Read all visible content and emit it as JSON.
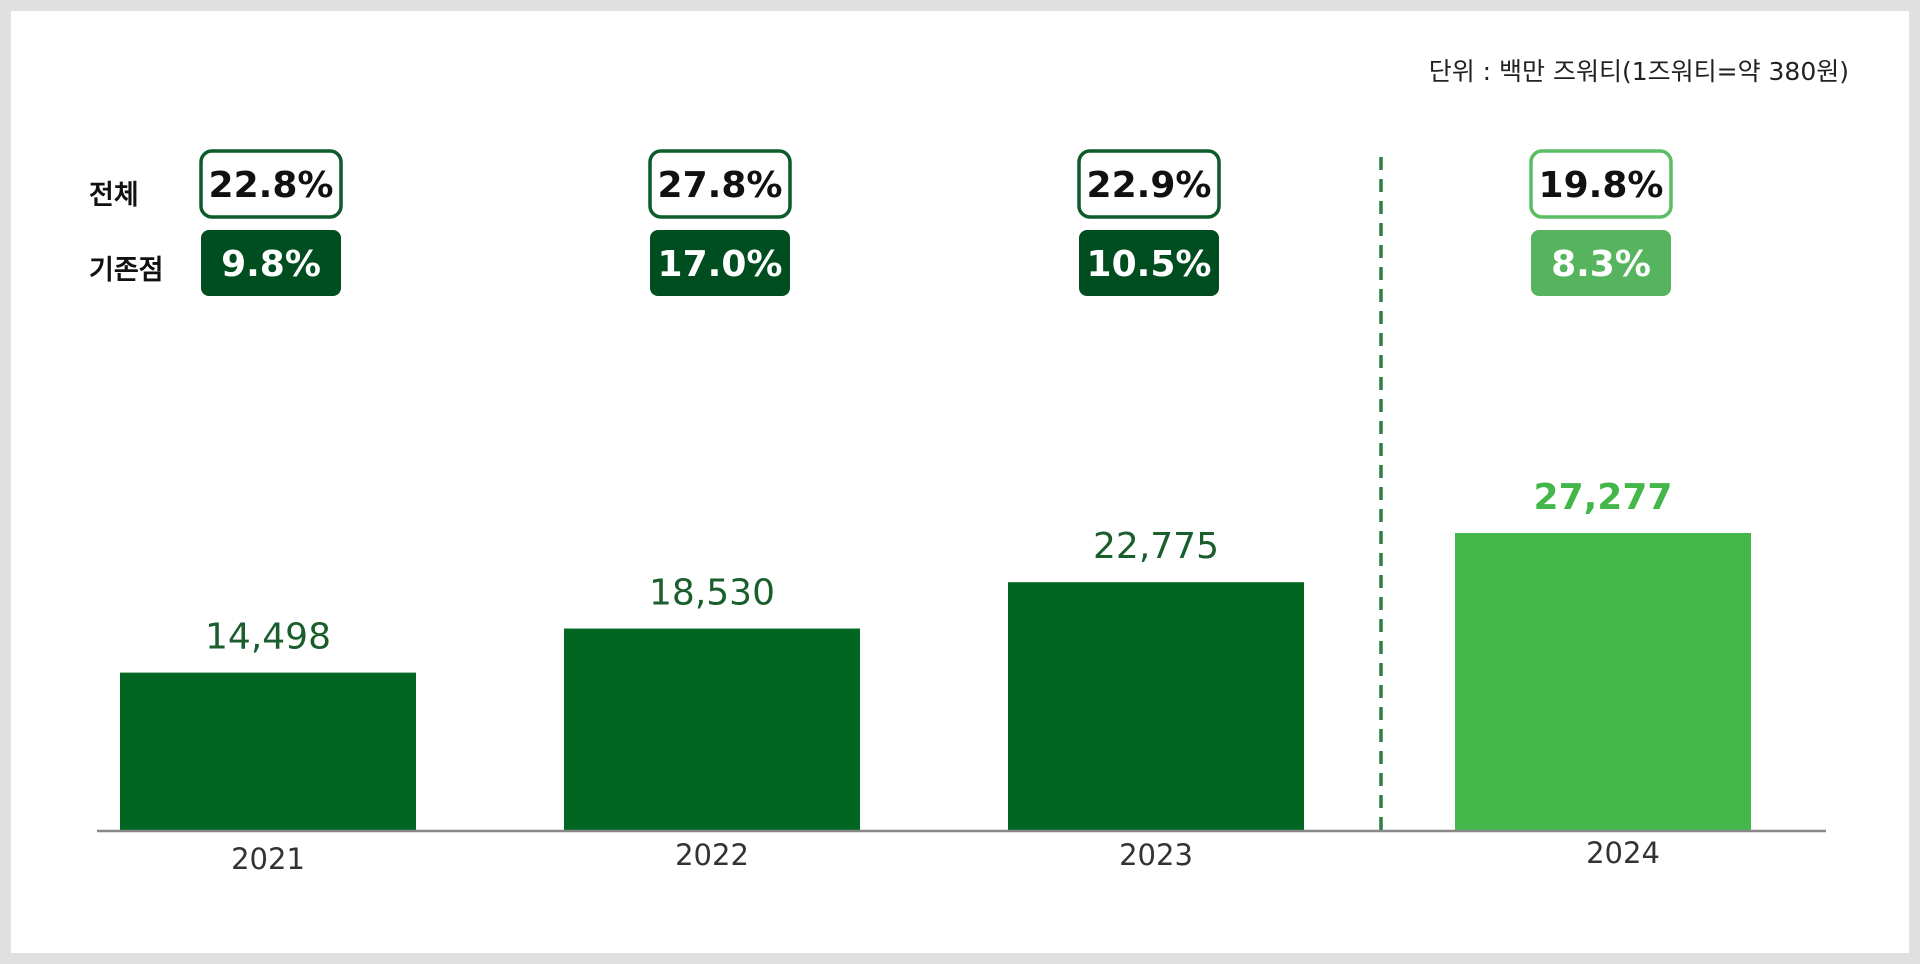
{
  "chart_data": {
    "type": "bar",
    "unit_note": "단위 : 백만 즈워티(1즈워티=약 380원)",
    "categories": [
      "2021",
      "2022",
      "2023",
      "2024"
    ],
    "values": [
      14498,
      18530,
      22775,
      27277
    ],
    "value_labels": [
      "14,498",
      "18,530",
      "22,775",
      "27,277"
    ],
    "highlight_category": "2024",
    "row_labels": {
      "total": "전체",
      "existing": "기존점"
    },
    "growth_total": [
      "22.8%",
      "27.8%",
      "22.9%",
      "19.8%"
    ],
    "growth_existing": [
      "9.8%",
      "17.0%",
      "10.5%",
      "8.3%"
    ],
    "ylim": [
      0,
      38000
    ],
    "grid": false,
    "colors": {
      "bar": "#006622",
      "bar_highlight": "#44b74b",
      "badge_dark": "#004d20",
      "badge_dark_border": "#0d5a2a",
      "badge_highlight": "#56b35e",
      "badge_highlight_border": "#5bbd63",
      "value_text": "#1b5e2e",
      "value_text_highlight": "#44b74b",
      "divider": "#2e7d44",
      "axis": "#888888"
    }
  }
}
